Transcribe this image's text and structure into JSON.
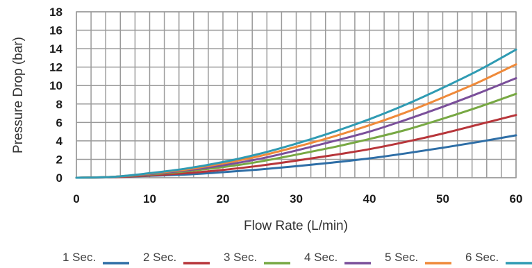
{
  "chart_data": {
    "type": "line",
    "title": "",
    "xlabel": "Flow Rate (L/min)",
    "ylabel": "Pressure Drop (bar)",
    "xlim": [
      0,
      60
    ],
    "ylim": [
      0,
      18
    ],
    "x_ticks": [
      0,
      10,
      20,
      30,
      40,
      50,
      60
    ],
    "y_ticks": [
      0,
      2,
      4,
      6,
      8,
      10,
      12,
      14,
      16,
      18
    ],
    "grid": true,
    "legend_position": "bottom",
    "x": [
      0,
      5,
      10,
      15,
      20,
      25,
      30,
      35,
      40,
      45,
      50,
      55,
      60
    ],
    "series": [
      {
        "name": "1 Sec.",
        "color": "#2e6ea6",
        "values": [
          0,
          0.05,
          0.2,
          0.35,
          0.6,
          0.9,
          1.25,
          1.65,
          2.1,
          2.65,
          3.25,
          3.9,
          4.6
        ]
      },
      {
        "name": "2 Sec.",
        "color": "#b7353a",
        "values": [
          0,
          0.05,
          0.25,
          0.5,
          0.85,
          1.3,
          1.85,
          2.45,
          3.1,
          3.9,
          4.8,
          5.8,
          6.8
        ]
      },
      {
        "name": "3 Sec.",
        "color": "#77a843",
        "values": [
          0,
          0.1,
          0.35,
          0.7,
          1.15,
          1.75,
          2.5,
          3.3,
          4.2,
          5.2,
          6.4,
          7.7,
          9.1
        ]
      },
      {
        "name": "4 Sec.",
        "color": "#7a4f9a",
        "values": [
          0,
          0.1,
          0.4,
          0.8,
          1.35,
          2.05,
          2.95,
          3.95,
          5.0,
          6.3,
          7.7,
          9.2,
          10.8
        ]
      },
      {
        "name": "5 Sec.",
        "color": "#ef8a3a",
        "values": [
          0,
          0.1,
          0.45,
          0.9,
          1.55,
          2.35,
          3.35,
          4.45,
          5.7,
          7.1,
          8.7,
          10.4,
          12.3
        ]
      },
      {
        "name": "6 Sec.",
        "color": "#2f9bb3",
        "values": [
          0,
          0.1,
          0.5,
          1.0,
          1.7,
          2.6,
          3.7,
          4.95,
          6.35,
          7.95,
          9.75,
          11.7,
          13.9
        ]
      }
    ]
  }
}
